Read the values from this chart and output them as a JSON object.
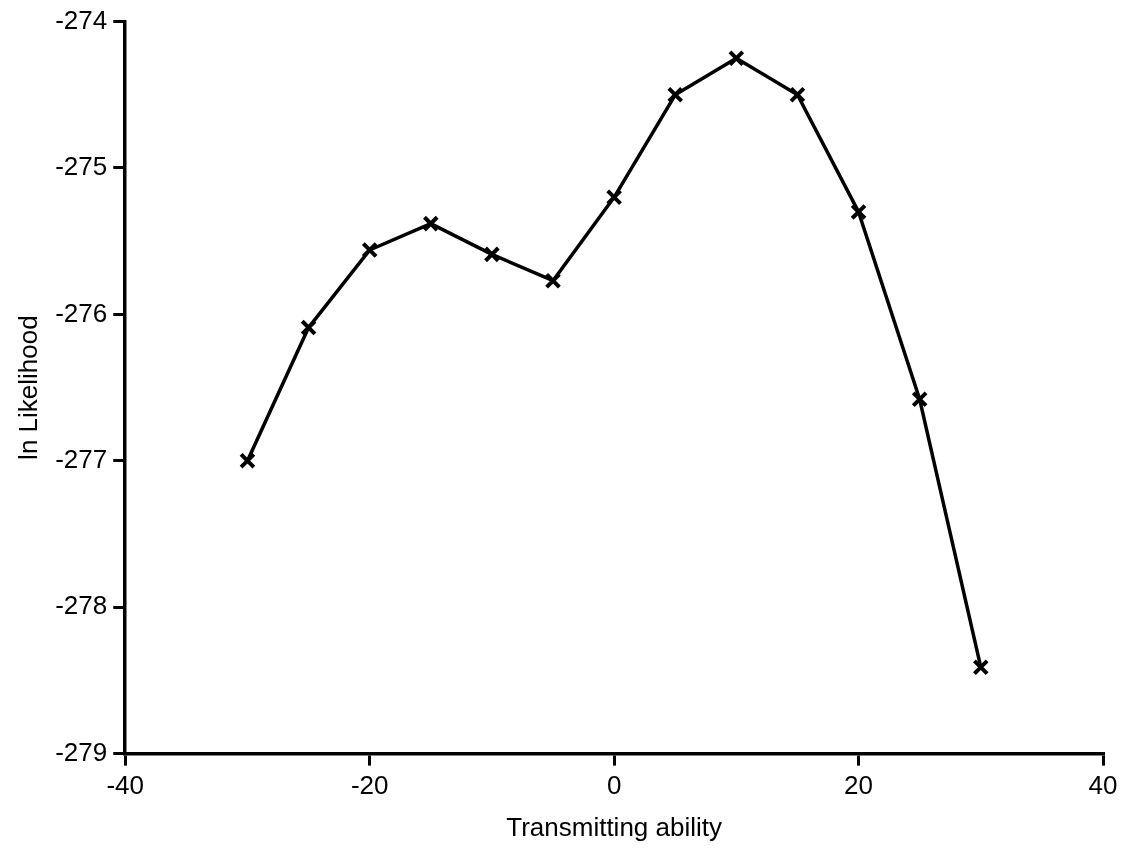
{
  "chart_data": {
    "type": "line",
    "xlabel": "Transmitting ability",
    "ylabel": "ln Likelihood",
    "x": [
      -30,
      -25,
      -20,
      -15,
      -10,
      -5,
      0,
      5,
      10,
      15,
      20,
      25,
      30
    ],
    "series": [
      {
        "color": "#000000",
        "values": [
          -277.0,
          -276.09,
          -275.56,
          -275.38,
          -275.59,
          -275.77,
          -275.2,
          -274.5,
          -274.25,
          -274.5,
          -275.3,
          -276.58,
          -278.41
        ]
      }
    ],
    "xlim": [
      -40,
      40
    ],
    "xticks": [
      -40,
      -20,
      0,
      20,
      40
    ],
    "ylim": [
      -279,
      -274
    ],
    "yticks": [
      -279,
      -278,
      -277,
      -276,
      -275,
      -274
    ],
    "marker": "cross",
    "grid": false,
    "legend": false
  }
}
